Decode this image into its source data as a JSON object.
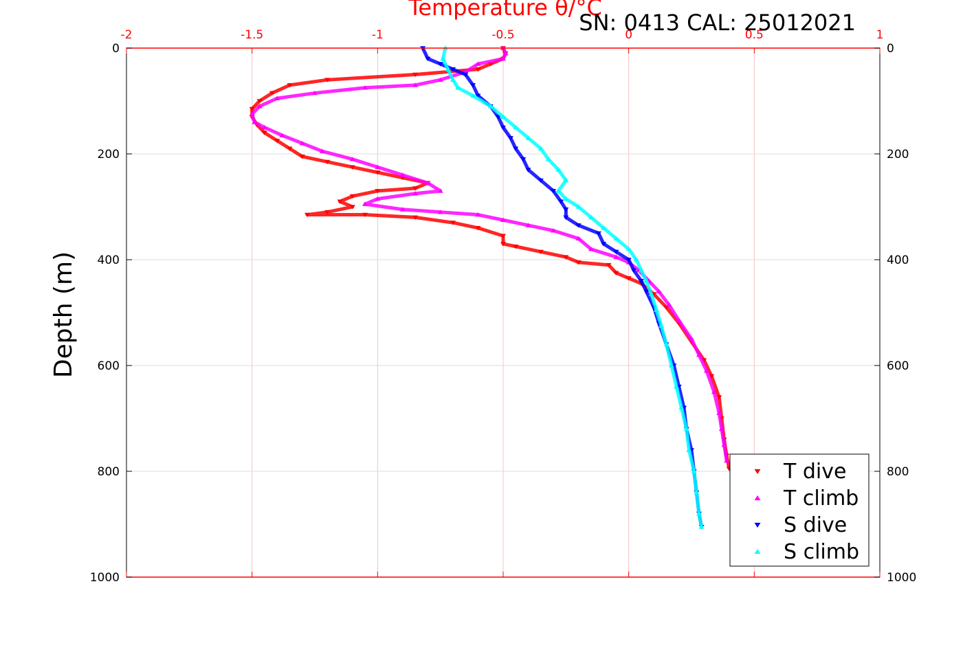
{
  "chart_data": {
    "type": "scatter",
    "title": "Temperature θ/°C",
    "subtitle": "SN: 0413  CAL: 25012021",
    "xlabel": "Temperature θ/°C",
    "ylabel": "Depth (m)",
    "xlim": [
      -2,
      1
    ],
    "ylim": [
      0,
      1000
    ],
    "y_reversed": true,
    "grid": true,
    "legend_position": "bottom-right",
    "x_ticks": [
      "-2",
      "-1.5",
      "-1",
      "-0.5",
      "0",
      "0.5",
      "1"
    ],
    "y_ticks": [
      "0",
      "200",
      "400",
      "600",
      "800",
      "1000"
    ],
    "colors": {
      "t_dive": "#ff0000",
      "t_climb": "#ff00ff",
      "s_dive": "#0000ff",
      "s_climb": "#00ffff",
      "top_axis": "#ff0000",
      "grid": "#dddddd"
    },
    "series": [
      {
        "name": "T dive",
        "marker": "triangle-down",
        "points": [
          [
            -0.5,
            0
          ],
          [
            -0.49,
            10
          ],
          [
            -0.5,
            20
          ],
          [
            -0.55,
            30
          ],
          [
            -0.6,
            40
          ],
          [
            -0.85,
            50
          ],
          [
            -1.2,
            60
          ],
          [
            -1.35,
            70
          ],
          [
            -1.42,
            85
          ],
          [
            -1.47,
            100
          ],
          [
            -1.5,
            115
          ],
          [
            -1.5,
            130
          ],
          [
            -1.48,
            145
          ],
          [
            -1.45,
            160
          ],
          [
            -1.4,
            175
          ],
          [
            -1.35,
            190
          ],
          [
            -1.3,
            205
          ],
          [
            -1.2,
            215
          ],
          [
            -1.1,
            225
          ],
          [
            -1.0,
            235
          ],
          [
            -0.9,
            245
          ],
          [
            -0.8,
            255
          ],
          [
            -0.85,
            265
          ],
          [
            -1.0,
            270
          ],
          [
            -1.1,
            280
          ],
          [
            -1.15,
            290
          ],
          [
            -1.1,
            300
          ],
          [
            -1.2,
            310
          ],
          [
            -1.28,
            315
          ],
          [
            -1.05,
            315
          ],
          [
            -0.85,
            320
          ],
          [
            -0.7,
            330
          ],
          [
            -0.6,
            340
          ],
          [
            -0.5,
            355
          ],
          [
            -0.5,
            370
          ],
          [
            -0.45,
            375
          ],
          [
            -0.35,
            385
          ],
          [
            -0.25,
            395
          ],
          [
            -0.2,
            405
          ],
          [
            -0.08,
            410
          ],
          [
            -0.05,
            425
          ],
          [
            0.0,
            435
          ],
          [
            0.05,
            445
          ],
          [
            0.1,
            465
          ],
          [
            0.15,
            490
          ],
          [
            0.2,
            520
          ],
          [
            0.25,
            555
          ],
          [
            0.3,
            590
          ],
          [
            0.33,
            620
          ],
          [
            0.36,
            660
          ],
          [
            0.37,
            700
          ],
          [
            0.38,
            740
          ],
          [
            0.39,
            770
          ],
          [
            0.4,
            795
          ]
        ]
      },
      {
        "name": "T climb",
        "marker": "triangle-up",
        "points": [
          [
            -0.5,
            0
          ],
          [
            -0.49,
            10
          ],
          [
            -0.5,
            20
          ],
          [
            -0.6,
            30
          ],
          [
            -0.65,
            45
          ],
          [
            -0.75,
            60
          ],
          [
            -0.85,
            70
          ],
          [
            -1.05,
            75
          ],
          [
            -1.25,
            85
          ],
          [
            -1.4,
            95
          ],
          [
            -1.47,
            110
          ],
          [
            -1.5,
            125
          ],
          [
            -1.49,
            140
          ],
          [
            -1.45,
            150
          ],
          [
            -1.38,
            165
          ],
          [
            -1.3,
            180
          ],
          [
            -1.22,
            195
          ],
          [
            -1.1,
            210
          ],
          [
            -1.0,
            225
          ],
          [
            -0.9,
            240
          ],
          [
            -0.8,
            255
          ],
          [
            -0.75,
            270
          ],
          [
            -0.85,
            275
          ],
          [
            -1.0,
            285
          ],
          [
            -1.05,
            295
          ],
          [
            -0.9,
            305
          ],
          [
            -0.75,
            310
          ],
          [
            -0.6,
            315
          ],
          [
            -0.5,
            325
          ],
          [
            -0.4,
            335
          ],
          [
            -0.3,
            345
          ],
          [
            -0.2,
            360
          ],
          [
            -0.15,
            380
          ],
          [
            -0.05,
            395
          ],
          [
            0.0,
            405
          ],
          [
            0.04,
            420
          ],
          [
            0.08,
            440
          ],
          [
            0.12,
            460
          ],
          [
            0.16,
            485
          ],
          [
            0.2,
            515
          ],
          [
            0.25,
            550
          ],
          [
            0.28,
            580
          ],
          [
            0.31,
            610
          ],
          [
            0.34,
            650
          ],
          [
            0.36,
            690
          ],
          [
            0.37,
            720
          ],
          [
            0.38,
            750
          ],
          [
            0.39,
            780
          ]
        ]
      },
      {
        "name": "S dive",
        "marker": "triangle-down",
        "points": [
          [
            -0.82,
            0
          ],
          [
            -0.8,
            20
          ],
          [
            -0.75,
            30
          ],
          [
            -0.7,
            40
          ],
          [
            -0.65,
            50
          ],
          [
            -0.62,
            70
          ],
          [
            -0.6,
            90
          ],
          [
            -0.55,
            110
          ],
          [
            -0.52,
            130
          ],
          [
            -0.5,
            150
          ],
          [
            -0.47,
            170
          ],
          [
            -0.45,
            190
          ],
          [
            -0.42,
            210
          ],
          [
            -0.4,
            230
          ],
          [
            -0.35,
            250
          ],
          [
            -0.3,
            270
          ],
          [
            -0.27,
            290
          ],
          [
            -0.25,
            305
          ],
          [
            -0.25,
            320
          ],
          [
            -0.2,
            335
          ],
          [
            -0.12,
            350
          ],
          [
            -0.1,
            370
          ],
          [
            -0.05,
            385
          ],
          [
            0.0,
            400
          ],
          [
            0.02,
            420
          ],
          [
            0.05,
            440
          ],
          [
            0.07,
            460
          ],
          [
            0.1,
            490
          ],
          [
            0.12,
            520
          ],
          [
            0.15,
            560
          ],
          [
            0.18,
            600
          ],
          [
            0.2,
            640
          ],
          [
            0.22,
            680
          ],
          [
            0.23,
            720
          ],
          [
            0.25,
            760
          ],
          [
            0.26,
            800
          ],
          [
            0.27,
            840
          ],
          [
            0.28,
            880
          ],
          [
            0.29,
            905
          ]
        ]
      },
      {
        "name": "S climb",
        "marker": "triangle-up",
        "points": [
          [
            -0.73,
            0
          ],
          [
            -0.74,
            20
          ],
          [
            -0.72,
            40
          ],
          [
            -0.7,
            60
          ],
          [
            -0.68,
            75
          ],
          [
            -0.62,
            90
          ],
          [
            -0.55,
            110
          ],
          [
            -0.5,
            130
          ],
          [
            -0.45,
            150
          ],
          [
            -0.4,
            170
          ],
          [
            -0.35,
            190
          ],
          [
            -0.32,
            210
          ],
          [
            -0.28,
            230
          ],
          [
            -0.25,
            250
          ],
          [
            -0.28,
            270
          ],
          [
            -0.25,
            285
          ],
          [
            -0.2,
            300
          ],
          [
            -0.15,
            320
          ],
          [
            -0.1,
            340
          ],
          [
            -0.05,
            360
          ],
          [
            0.0,
            380
          ],
          [
            0.03,
            400
          ],
          [
            0.05,
            420
          ],
          [
            0.07,
            440
          ],
          [
            0.09,
            465
          ],
          [
            0.11,
            495
          ],
          [
            0.13,
            525
          ],
          [
            0.15,
            560
          ],
          [
            0.17,
            600
          ],
          [
            0.19,
            640
          ],
          [
            0.21,
            680
          ],
          [
            0.23,
            720
          ],
          [
            0.24,
            760
          ],
          [
            0.26,
            800
          ],
          [
            0.27,
            840
          ],
          [
            0.28,
            880
          ],
          [
            0.29,
            905
          ]
        ]
      }
    ]
  }
}
